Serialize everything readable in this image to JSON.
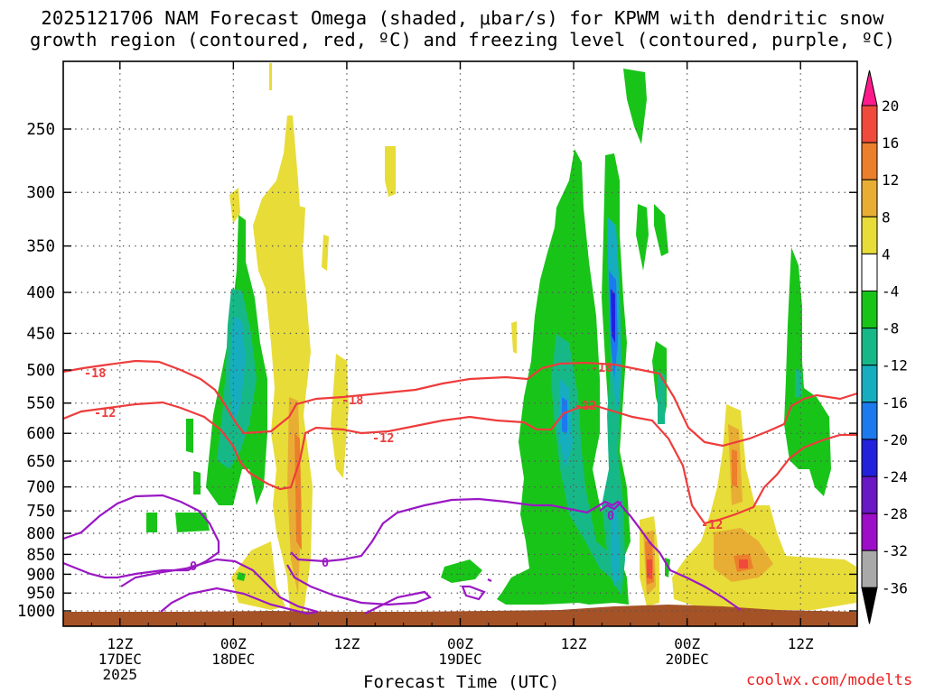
{
  "title": {
    "line1": "2025121706 NAM Forecast Omega (shaded, μbar/s) for KPWM with dendritic snow",
    "line2": "growth region (contoured, red, ºC) and freezing level (contoured, purple, ºC)"
  },
  "credit": "coolwx.com/modelts",
  "chart_data": {
    "type": "time-height cross section (filled contour)",
    "title": "2025121706 NAM Forecast Omega (shaded, μbar/s) for KPWM with dendritic snow growth region (contoured, red, ºC) and freezing level (contoured, purple, ºC)",
    "xlabel": "Forecast Time (UTC)",
    "ylabel": "",
    "x_ticks": [
      {
        "label": "12Z",
        "sub1": "17DEC",
        "sub2": "2025",
        "hour": 6
      },
      {
        "label": "00Z",
        "sub1": "18DEC",
        "sub2": "",
        "hour": 18
      },
      {
        "label": "12Z",
        "sub1": "",
        "sub2": "",
        "hour": 30
      },
      {
        "label": "00Z",
        "sub1": "19DEC",
        "sub2": "",
        "hour": 42
      },
      {
        "label": "12Z",
        "sub1": "",
        "sub2": "",
        "hour": 54
      },
      {
        "label": "00Z",
        "sub1": "20DEC",
        "sub2": "",
        "hour": 66
      },
      {
        "label": "12Z",
        "sub1": "",
        "sub2": "",
        "hour": 78
      }
    ],
    "x_range_hours": [
      0,
      84
    ],
    "y_ticks": [
      "250",
      "300",
      "350",
      "400",
      "450",
      "500",
      "550",
      "600",
      "650",
      "700",
      "750",
      "800",
      "850",
      "900",
      "950",
      "1000"
    ],
    "y_range_mb": [
      200,
      1020
    ],
    "y_scale": "log-pressure",
    "grid": true,
    "colorbar_labels": [
      "20",
      "16",
      "12",
      "8",
      "4",
      "-4",
      "-8",
      "-12",
      "-16",
      "-20",
      "-24",
      "-28",
      "-32",
      "-36"
    ],
    "colorbar_colors": [
      "#ff1a8c",
      "#f04a3c",
      "#ec7f2c",
      "#e8ae34",
      "#e8dc38",
      "#ffffff",
      "#19c419",
      "#17b888",
      "#16aebe",
      "#1c7aee",
      "#2222dd",
      "#6a17c6",
      "#9c0ec8",
      "#a9a9a9",
      "#000000"
    ],
    "contours": [
      {
        "name": "dendritic -18C",
        "color": "#ee3c3c",
        "labels": [
          "-18",
          "-18",
          "-18"
        ]
      },
      {
        "name": "dendritic -12C",
        "color": "#ee3c3c",
        "labels": [
          "-12",
          "-12",
          "-12",
          "-12"
        ]
      },
      {
        "name": "freezing level 0C",
        "color": "#9a18c4",
        "labels": [
          "0",
          "0",
          "0"
        ]
      }
    ],
    "ground_color": "#a55227"
  }
}
